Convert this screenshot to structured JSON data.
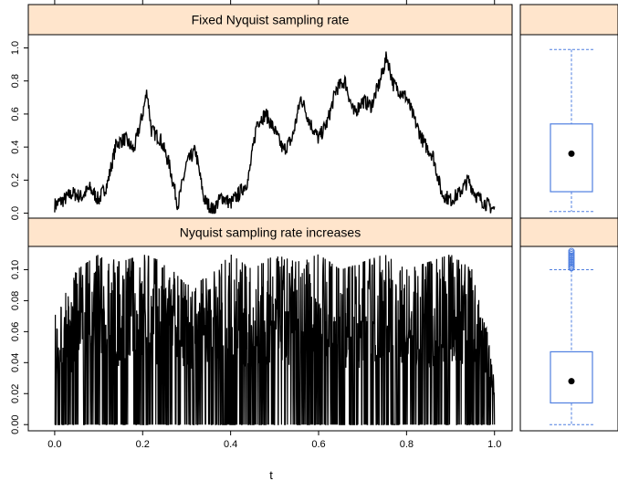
{
  "colors": {
    "strip_fill": "#FFE5CC",
    "frame": "#000000",
    "trace": "#000000",
    "box": "#4F7FE0",
    "box_median_dot": "#000000",
    "outlier": "#4F7FE0"
  },
  "chart_data": [
    {
      "type": "line",
      "title": "Fixed  Nyquist sampling rate",
      "xlabel": "t",
      "ylabel": "",
      "xlim": [
        -0.06,
        1.04
      ],
      "ylim": [
        -0.03,
        1.08
      ],
      "x_ticks": [
        0.0,
        0.2,
        0.4,
        0.6,
        0.8,
        1.0
      ],
      "x_tick_labels": [
        "0.0",
        "0.2",
        "0.4",
        "0.6",
        "0.8",
        "1.0"
      ],
      "y_ticks": [
        0.0,
        0.2,
        0.4,
        0.6,
        0.8,
        1.0
      ],
      "y_tick_labels": [
        "0.0",
        "0.2",
        "0.4",
        "0.6",
        "0.8",
        "1.0"
      ],
      "grid": false,
      "series": [
        {
          "x": [
            0.0,
            0.02,
            0.04,
            0.06,
            0.08,
            0.1,
            0.12,
            0.14,
            0.16,
            0.18,
            0.2,
            0.21,
            0.22,
            0.24,
            0.26,
            0.28,
            0.3,
            0.32,
            0.34,
            0.36,
            0.38,
            0.4,
            0.42,
            0.44,
            0.46,
            0.48,
            0.5,
            0.52,
            0.54,
            0.56,
            0.58,
            0.6,
            0.62,
            0.64,
            0.66,
            0.68,
            0.7,
            0.72,
            0.74,
            0.755,
            0.77,
            0.8,
            0.82,
            0.84,
            0.86,
            0.88,
            0.9,
            0.92,
            0.94,
            0.96,
            0.98,
            1.0
          ],
          "y": [
            0.05,
            0.08,
            0.12,
            0.1,
            0.15,
            0.08,
            0.18,
            0.42,
            0.45,
            0.38,
            0.6,
            0.74,
            0.5,
            0.45,
            0.3,
            0.05,
            0.3,
            0.38,
            0.08,
            0.02,
            0.1,
            0.06,
            0.12,
            0.2,
            0.55,
            0.6,
            0.5,
            0.38,
            0.45,
            0.7,
            0.55,
            0.45,
            0.55,
            0.75,
            0.8,
            0.6,
            0.68,
            0.65,
            0.8,
            0.95,
            0.78,
            0.7,
            0.55,
            0.42,
            0.35,
            0.12,
            0.08,
            0.12,
            0.2,
            0.1,
            0.06,
            0.02
          ]
        }
      ]
    },
    {
      "type": "line",
      "title": "Nyquist sampling rate increases",
      "xlabel": "t",
      "ylabel": "",
      "xlim": [
        -0.06,
        1.04
      ],
      "ylim": [
        -0.004,
        0.115
      ],
      "x_ticks": [
        0.0,
        0.2,
        0.4,
        0.6,
        0.8,
        1.0
      ],
      "x_tick_labels": [
        "0.0",
        "0.2",
        "0.4",
        "0.6",
        "0.8",
        "1.0"
      ],
      "y_ticks": [
        0.0,
        0.02,
        0.04,
        0.06,
        0.08,
        0.1
      ],
      "y_tick_labels": [
        "0.00",
        "0.02",
        "0.04",
        "0.06",
        "0.08",
        "0.10"
      ],
      "grid": false,
      "series": [
        {
          "x": [
            0.0,
            0.05,
            0.1,
            0.15,
            0.2,
            0.25,
            0.3,
            0.35,
            0.4,
            0.45,
            0.5,
            0.55,
            0.6,
            0.65,
            0.7,
            0.75,
            0.8,
            0.85,
            0.9,
            0.95,
            1.0
          ],
          "y": [
            0.07,
            0.1,
            0.11,
            0.105,
            0.11,
            0.105,
            0.09,
            0.095,
            0.11,
            0.1,
            0.11,
            0.105,
            0.11,
            0.1,
            0.105,
            0.11,
            0.1,
            0.105,
            0.11,
            0.1,
            0.04
          ]
        }
      ]
    },
    {
      "type": "box",
      "title": "",
      "ylim": [
        -0.03,
        1.08
      ],
      "whisker_low": 0.01,
      "q1": 0.13,
      "median": 0.36,
      "q3": 0.54,
      "whisker_high": 0.99,
      "outliers": []
    },
    {
      "type": "box",
      "title": "",
      "ylim": [
        -0.004,
        0.115
      ],
      "whisker_low": 0.0,
      "q1": 0.014,
      "median": 0.028,
      "q3": 0.047,
      "whisker_high": 0.1,
      "outliers": [
        0.101,
        0.102,
        0.103,
        0.104,
        0.105,
        0.106,
        0.107,
        0.108,
        0.109,
        0.11,
        0.111,
        0.112
      ]
    }
  ]
}
